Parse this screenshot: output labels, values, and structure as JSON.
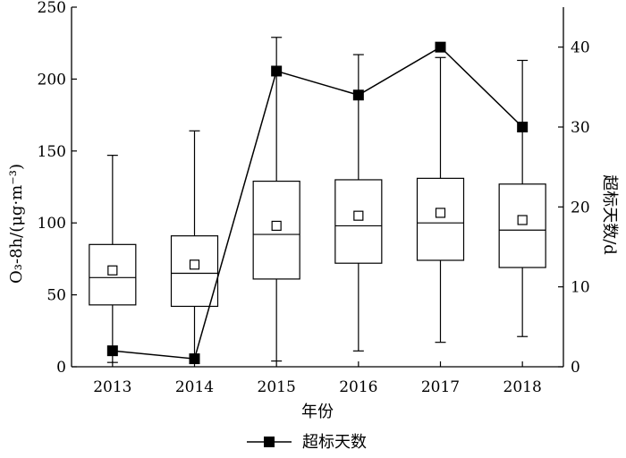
{
  "chart_data": {
    "type": "box",
    "categories": [
      "2013",
      "2014",
      "2015",
      "2016",
      "2017",
      "2018"
    ],
    "xlabel": "年份",
    "ylabel_left": "O₃-8h/(μg·m⁻³)",
    "ylabel_right": "超标天数/d",
    "ylim_left": [
      0,
      250
    ],
    "ylim_right": [
      0,
      45
    ],
    "yticks_left": [
      "0",
      "50",
      "100",
      "150",
      "200",
      "250"
    ],
    "yticks_right": [
      "0",
      "10",
      "20",
      "30",
      "40"
    ],
    "boxes": [
      {
        "category": "2013",
        "min": 3,
        "q1": 43,
        "median": 62,
        "q3": 85,
        "max": 147,
        "mean": 67
      },
      {
        "category": "2014",
        "min": 5,
        "q1": 42,
        "median": 65,
        "q3": 91,
        "max": 164,
        "mean": 71
      },
      {
        "category": "2015",
        "min": 4,
        "q1": 61,
        "median": 92,
        "q3": 129,
        "max": 229,
        "mean": 98
      },
      {
        "category": "2016",
        "min": 11,
        "q1": 72,
        "median": 98,
        "q3": 130,
        "max": 217,
        "mean": 105
      },
      {
        "category": "2017",
        "min": 17,
        "q1": 74,
        "median": 100,
        "q3": 131,
        "max": 215,
        "mean": 107
      },
      {
        "category": "2018",
        "min": 21,
        "q1": 69,
        "median": 95,
        "q3": 127,
        "max": 213,
        "mean": 102
      }
    ],
    "series": [
      {
        "name": "超标天数",
        "axis": "right",
        "marker": "square",
        "values": [
          2,
          1,
          37,
          34,
          40,
          30
        ]
      }
    ],
    "legend_position": "bottom",
    "grid": false
  }
}
